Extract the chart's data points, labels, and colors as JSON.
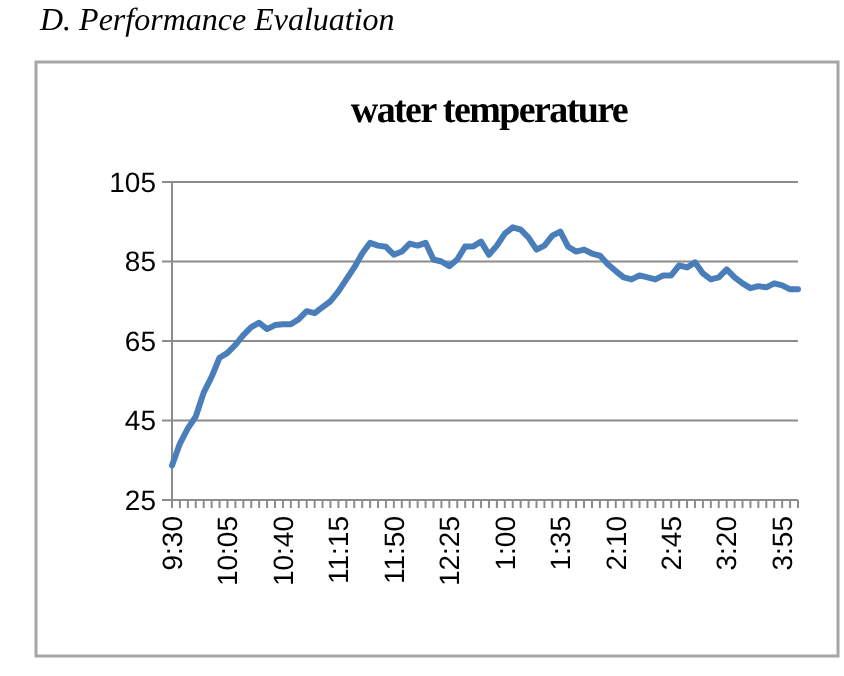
{
  "chart_data": {
    "type": "line",
    "title": "water temperature",
    "annotations": [
      "D.   Performance Evaluation"
    ],
    "categories": [
      "9:30",
      null,
      null,
      null,
      null,
      null,
      null,
      "10:05",
      null,
      null,
      null,
      null,
      null,
      null,
      "10:40",
      null,
      null,
      null,
      null,
      null,
      null,
      "11:15",
      null,
      null,
      null,
      null,
      null,
      null,
      "11:50",
      null,
      null,
      null,
      null,
      null,
      null,
      "12:25",
      null,
      null,
      null,
      null,
      null,
      null,
      "1:00",
      null,
      null,
      null,
      null,
      null,
      null,
      "1:35",
      null,
      null,
      null,
      null,
      null,
      null,
      "2:10",
      null,
      null,
      null,
      null,
      null,
      null,
      "2:45",
      null,
      null,
      null,
      null,
      null,
      null,
      "3:20",
      null,
      null,
      null,
      null,
      null,
      null,
      "3:55",
      null,
      null
    ],
    "series": [
      {
        "color": "#4a7ebb",
        "values": [
          33.7,
          39.2,
          43,
          46,
          52,
          56,
          60.8,
          62,
          64,
          66.5,
          68.5,
          69.6,
          68,
          69,
          69.2,
          69.2,
          70.5,
          72.5,
          72,
          73.5,
          75,
          77.5,
          80.5,
          83.5,
          87,
          89.7,
          89,
          88.7,
          86.7,
          87.5,
          89.5,
          89,
          89.7,
          85.5,
          85,
          83.8,
          85.5,
          88.8,
          88.8,
          90,
          86.7,
          89,
          92,
          93.6,
          93,
          91,
          88,
          89,
          91.5,
          92.5,
          88.7,
          87.5,
          88,
          87,
          86.5,
          84.3,
          82.6,
          81,
          80.5,
          81.5,
          81,
          80.5,
          81.5,
          81.5,
          84,
          83.5,
          84.8,
          82,
          80.5,
          81,
          83,
          81,
          79.5,
          78.3,
          78.8,
          78.5,
          79.5,
          79,
          78,
          78
        ]
      }
    ],
    "ylim": [
      25,
      105
    ],
    "yticks": [
      25,
      45,
      65,
      85,
      105
    ],
    "grid": "y",
    "marker": "none",
    "line_style": "solid"
  }
}
